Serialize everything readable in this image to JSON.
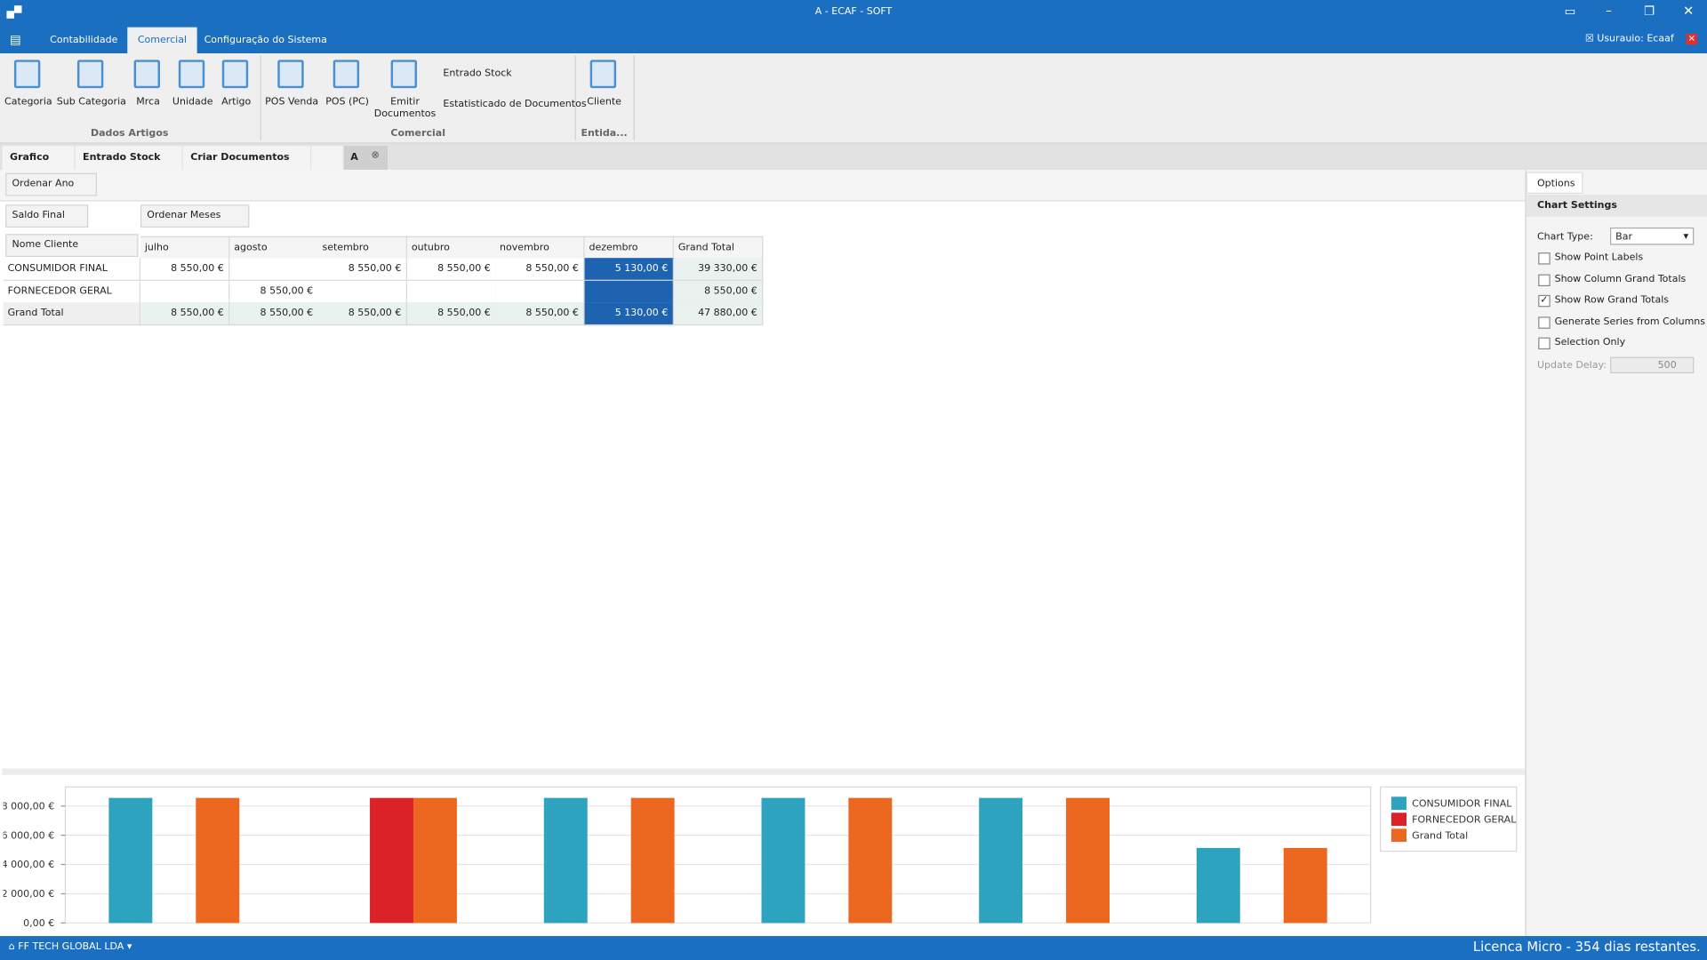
{
  "app": {
    "title": "A - ECAF - SOFT",
    "user": "Usurauio: Ecaaf"
  },
  "menu_tabs": [
    "Contabilidade",
    "Comercial",
    "Configuração do Sistema"
  ],
  "ribbon": [
    {
      "label": "Dados Artigos",
      "buttons": [
        "Categoria",
        "Sub Categoria",
        "Mrca",
        "Unidade",
        "Artigo"
      ]
    },
    {
      "label": "Comercial",
      "buttons": [
        "POS Venda",
        "POS (PC)",
        "Emitir Documentos",
        "Entrado Stock",
        "Estatisticado de Documentos"
      ]
    },
    {
      "label": "Entida...",
      "buttons": [
        "Cliente"
      ]
    }
  ],
  "doc_tabs": [
    "Grafico",
    "Entrado Stock",
    "Criar Documentos",
    "A"
  ],
  "pivot": {
    "filter_field": "Ordenar Ano",
    "data_field": "Saldo Final",
    "column_field": "Ordenar Meses",
    "row_field": "Nome Cliente",
    "columns": [
      "julho",
      "agosto",
      "setembro",
      "outubro",
      "novembro",
      "dezembro",
      "Grand Total"
    ],
    "rows": [
      {
        "name": "CONSUMIDOR FINAL",
        "cells": [
          "8 550,00 €",
          null,
          "8 550,00 €",
          "8 550,00 €",
          "8 550,00 €",
          "5 130,00 €",
          "39 330,00 €"
        ]
      },
      {
        "name": "FORNECEDOR GERAL",
        "cells": [
          null,
          "8 550,00 €",
          null,
          null,
          null,
          null,
          "8 550,00 €"
        ]
      },
      {
        "name": "Grand Total",
        "cells": [
          "8 550,00 €",
          "8 550,00 €",
          "8 550,00 €",
          "8 550,00 €",
          "8 550,00 €",
          "5 130,00 €",
          "47 880,00 €"
        ]
      }
    ]
  },
  "options": {
    "tab": "Options",
    "heading": "Chart Settings",
    "chart_type_label": "Chart Type:",
    "chart_type": "Bar",
    "checkboxes": [
      {
        "label": "Show Point Labels",
        "checked": false
      },
      {
        "label": "Show Column Grand Totals",
        "checked": false
      },
      {
        "label": "Show Row Grand Totals",
        "checked": true
      },
      {
        "label": "Generate Series from Columns",
        "checked": false
      },
      {
        "label": "Selection Only",
        "checked": false
      }
    ],
    "update_delay_label": "Update Delay:",
    "update_delay": 500
  },
  "status": {
    "company": "FF TECH GLOBAL LDA",
    "license": "Licenca Micro - 354 dias restantes."
  },
  "chart_data": {
    "type": "bar",
    "categories": [
      null,
      null,
      null,
      null,
      null,
      null
    ],
    "series": [
      {
        "name": "CONSUMIDOR FINAL",
        "color": "#2ea3c0",
        "values": [
          8550,
          null,
          8550,
          8550,
          8550,
          5130
        ]
      },
      {
        "name": "FORNECEDOR GERAL",
        "color": "#dc2229",
        "values": [
          null,
          8550,
          null,
          null,
          null,
          null
        ]
      },
      {
        "name": "Grand Total",
        "color": "#ec6720",
        "values": [
          8550,
          8550,
          8550,
          8550,
          8550,
          5130
        ]
      }
    ],
    "ylim": [
      0,
      9300
    ],
    "yticks": [
      {
        "value": 0,
        "label": "0,00 €"
      },
      {
        "value": 2000,
        "label": "2 000,00 €"
      },
      {
        "value": 4000,
        "label": "4 000,00 €"
      },
      {
        "value": 6000,
        "label": "6 000,00 €"
      },
      {
        "value": 8000,
        "label": "8 000,00 €"
      }
    ],
    "grid": true,
    "legend": "right"
  }
}
